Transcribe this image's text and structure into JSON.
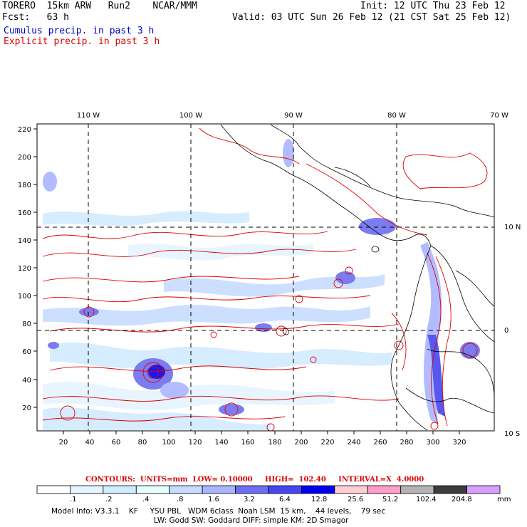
{
  "header": {
    "line1_left": "TORERO  15km ARW   Run2    NCAR/MMM",
    "line1_right": "Init: 12 UTC Thu 23 Feb 12",
    "line2_left": "Fcst:   63 h",
    "line2_right": "Valid: 03 UTC Sun 26 Feb 12 (21 CST Sat 25 Feb 12)",
    "cumulus_label": "Cumulus precip. in past 3 h",
    "explicit_label": "Explicit precip. in past 3 h"
  },
  "map": {
    "top_lon_labels": [
      "110 W",
      "100 W",
      "90 W",
      "80 W",
      "70 W"
    ],
    "right_lat_labels": [
      "10 N",
      "0",
      "10 S"
    ],
    "left_ticks": [
      "220",
      "200",
      "180",
      "160",
      "140",
      "120",
      "100",
      "80",
      "60",
      "40",
      "20"
    ],
    "bottom_ticks": [
      "20",
      "40",
      "60",
      "80",
      "100",
      "120",
      "140",
      "160",
      "180",
      "200",
      "220",
      "240",
      "260",
      "280",
      "300",
      "320"
    ]
  },
  "contours": {
    "text": "CONTOURS:  UNITS=mm  LOW= 0.10000     HIGH=  102.40     INTERVAL=X  4.0000"
  },
  "colorbar": {
    "labels": [
      ".1",
      ".2",
      ".4",
      ".8",
      "1.6",
      "3.2",
      "6.4",
      "12.8",
      "25.6",
      "51.2",
      "102.4",
      "204.8"
    ],
    "unit": "mm",
    "colors": [
      "#ffffff",
      "#e6f5ff",
      "#d2ebff",
      "#e6ffff",
      "#c8dcff",
      "#aab4ff",
      "#6e6ef0",
      "#4646f0",
      "#0000f0",
      "#ffcdd2",
      "#ff9ec8",
      "#b4b4b4",
      "#3c3c3c",
      "#d7a0ff"
    ]
  },
  "footer": {
    "line1": "Model Info: V3.3.1    KF     YSU PBL   WDM 6class  Noah LSM  15 km,    44 levels,    79 sec",
    "line2": "LW: Godd SW: Goddard DIFF: simple KM: 2D Smagor"
  }
}
